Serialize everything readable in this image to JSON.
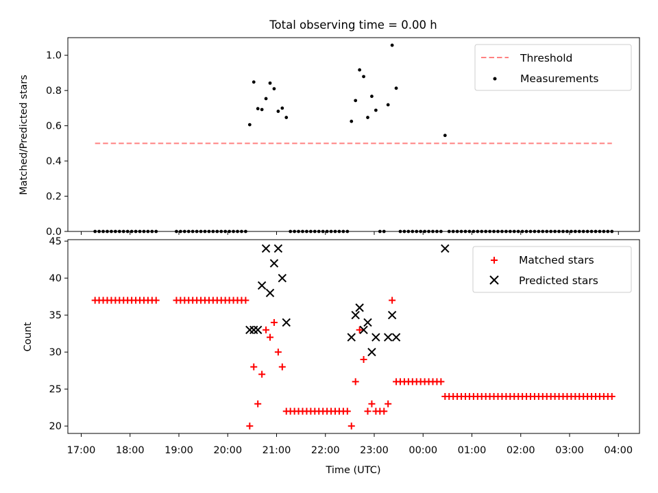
{
  "chart_data": [
    {
      "type": "scatter",
      "title": "Total observing time = 0.00 h",
      "xlabel": "",
      "ylabel": "Matched/Predicted stars",
      "ylim": [
        0,
        1.1
      ],
      "yticks": [
        "0.0",
        "0.2",
        "0.4",
        "0.6",
        "0.8",
        "1.0"
      ],
      "legend_position": "top-right",
      "threshold": {
        "name": "Threshold",
        "value": 0.5,
        "x_start": "17:17",
        "x_end": "03:52",
        "color": "#ff8080"
      },
      "measurements": {
        "name": "Measurements",
        "color": "#000000",
        "points": [
          [
            "17:17",
            0
          ],
          [
            "17:22",
            0
          ],
          [
            "17:27",
            0
          ],
          [
            "17:32",
            0
          ],
          [
            "17:37",
            0
          ],
          [
            "17:42",
            0
          ],
          [
            "17:47",
            0
          ],
          [
            "17:52",
            0
          ],
          [
            "17:57",
            0
          ],
          [
            "18:02",
            0
          ],
          [
            "18:07",
            0
          ],
          [
            "18:12",
            0
          ],
          [
            "18:17",
            0
          ],
          [
            "18:22",
            0
          ],
          [
            "18:27",
            0
          ],
          [
            "18:32",
            0
          ],
          [
            "18:57",
            0
          ],
          [
            "19:02",
            0
          ],
          [
            "19:07",
            0
          ],
          [
            "19:12",
            0
          ],
          [
            "19:17",
            0
          ],
          [
            "19:22",
            0
          ],
          [
            "19:27",
            0
          ],
          [
            "19:32",
            0
          ],
          [
            "19:37",
            0
          ],
          [
            "19:42",
            0
          ],
          [
            "19:47",
            0
          ],
          [
            "19:52",
            0
          ],
          [
            "19:57",
            0
          ],
          [
            "20:02",
            0
          ],
          [
            "20:07",
            0
          ],
          [
            "20:12",
            0
          ],
          [
            "20:17",
            0
          ],
          [
            "20:22",
            0
          ],
          [
            "20:27",
            0.606
          ],
          [
            "20:32",
            0.848
          ],
          [
            "20:37",
            0.697
          ],
          [
            "20:42",
            0.692
          ],
          [
            "20:47",
            0.754
          ],
          [
            "20:52",
            0.842
          ],
          [
            "20:57",
            0.81
          ],
          [
            "21:02",
            0.682
          ],
          [
            "21:07",
            0.7
          ],
          [
            "21:12",
            0.647
          ],
          [
            "21:17",
            0
          ],
          [
            "21:22",
            0
          ],
          [
            "21:27",
            0
          ],
          [
            "21:32",
            0
          ],
          [
            "21:37",
            0
          ],
          [
            "21:42",
            0
          ],
          [
            "21:47",
            0
          ],
          [
            "21:52",
            0
          ],
          [
            "21:57",
            0
          ],
          [
            "22:02",
            0
          ],
          [
            "22:07",
            0
          ],
          [
            "22:12",
            0
          ],
          [
            "22:17",
            0
          ],
          [
            "22:22",
            0
          ],
          [
            "22:27",
            0
          ],
          [
            "22:32",
            0.625
          ],
          [
            "22:37",
            0.743
          ],
          [
            "22:42",
            0.917
          ],
          [
            "22:47",
            0.879
          ],
          [
            "22:52",
            0.647
          ],
          [
            "22:57",
            0.767
          ],
          [
            "23:02",
            0.688
          ],
          [
            "23:07",
            0
          ],
          [
            "23:12",
            0
          ],
          [
            "23:17",
            0.719
          ],
          [
            "23:22",
            1.057
          ],
          [
            "23:27",
            0.813
          ],
          [
            "23:32",
            0
          ],
          [
            "23:37",
            0
          ],
          [
            "23:42",
            0
          ],
          [
            "23:47",
            0
          ],
          [
            "23:52",
            0
          ],
          [
            "23:57",
            0
          ],
          [
            "00:02",
            0
          ],
          [
            "00:07",
            0
          ],
          [
            "00:12",
            0
          ],
          [
            "00:17",
            0
          ],
          [
            "00:22",
            0
          ],
          [
            "00:27",
            0.545
          ],
          [
            "00:32",
            0
          ],
          [
            "00:37",
            0
          ],
          [
            "00:42",
            0
          ],
          [
            "00:47",
            0
          ],
          [
            "00:52",
            0
          ],
          [
            "00:57",
            0
          ],
          [
            "01:02",
            0
          ],
          [
            "01:07",
            0
          ],
          [
            "01:12",
            0
          ],
          [
            "01:17",
            0
          ],
          [
            "01:22",
            0
          ],
          [
            "01:27",
            0
          ],
          [
            "01:32",
            0
          ],
          [
            "01:37",
            0
          ],
          [
            "01:42",
            0
          ],
          [
            "01:47",
            0
          ],
          [
            "01:52",
            0
          ],
          [
            "01:57",
            0
          ],
          [
            "02:02",
            0
          ],
          [
            "02:07",
            0
          ],
          [
            "02:12",
            0
          ],
          [
            "02:17",
            0
          ],
          [
            "02:22",
            0
          ],
          [
            "02:27",
            0
          ],
          [
            "02:32",
            0
          ],
          [
            "02:37",
            0
          ],
          [
            "02:42",
            0
          ],
          [
            "02:47",
            0
          ],
          [
            "02:52",
            0
          ],
          [
            "02:57",
            0
          ],
          [
            "03:02",
            0
          ],
          [
            "03:07",
            0
          ],
          [
            "03:12",
            0
          ],
          [
            "03:17",
            0
          ],
          [
            "03:22",
            0
          ],
          [
            "03:27",
            0
          ],
          [
            "03:32",
            0
          ],
          [
            "03:37",
            0
          ],
          [
            "03:42",
            0
          ],
          [
            "03:47",
            0
          ],
          [
            "03:52",
            0
          ]
        ]
      }
    },
    {
      "type": "scatter",
      "title": "",
      "xlabel": "Time (UTC)",
      "ylabel": "Count",
      "ylim": [
        19,
        45.2
      ],
      "yticks": [
        "20",
        "25",
        "30",
        "35",
        "40",
        "45"
      ],
      "xticks": [
        "17:00",
        "18:00",
        "19:00",
        "20:00",
        "21:00",
        "22:00",
        "23:00",
        "00:00",
        "01:00",
        "02:00",
        "03:00",
        "04:00"
      ],
      "legend_position": "top-right",
      "series": [
        {
          "name": "Matched stars",
          "marker": "plus",
          "color": "#ff0000",
          "points": [
            [
              "17:17",
              37
            ],
            [
              "17:22",
              37
            ],
            [
              "17:27",
              37
            ],
            [
              "17:32",
              37
            ],
            [
              "17:37",
              37
            ],
            [
              "17:42",
              37
            ],
            [
              "17:47",
              37
            ],
            [
              "17:52",
              37
            ],
            [
              "17:57",
              37
            ],
            [
              "18:02",
              37
            ],
            [
              "18:07",
              37
            ],
            [
              "18:12",
              37
            ],
            [
              "18:17",
              37
            ],
            [
              "18:22",
              37
            ],
            [
              "18:27",
              37
            ],
            [
              "18:32",
              37
            ],
            [
              "18:57",
              37
            ],
            [
              "19:02",
              37
            ],
            [
              "19:07",
              37
            ],
            [
              "19:12",
              37
            ],
            [
              "19:17",
              37
            ],
            [
              "19:22",
              37
            ],
            [
              "19:27",
              37
            ],
            [
              "19:32",
              37
            ],
            [
              "19:37",
              37
            ],
            [
              "19:42",
              37
            ],
            [
              "19:47",
              37
            ],
            [
              "19:52",
              37
            ],
            [
              "19:57",
              37
            ],
            [
              "20:02",
              37
            ],
            [
              "20:07",
              37
            ],
            [
              "20:12",
              37
            ],
            [
              "20:17",
              37
            ],
            [
              "20:22",
              37
            ],
            [
              "20:27",
              20
            ],
            [
              "20:32",
              28
            ],
            [
              "20:37",
              23
            ],
            [
              "20:42",
              27
            ],
            [
              "20:47",
              33
            ],
            [
              "20:52",
              32
            ],
            [
              "20:57",
              34
            ],
            [
              "21:02",
              30
            ],
            [
              "21:07",
              28
            ],
            [
              "21:12",
              22
            ],
            [
              "21:17",
              22
            ],
            [
              "21:22",
              22
            ],
            [
              "21:27",
              22
            ],
            [
              "21:32",
              22
            ],
            [
              "21:37",
              22
            ],
            [
              "21:42",
              22
            ],
            [
              "21:47",
              22
            ],
            [
              "21:52",
              22
            ],
            [
              "21:57",
              22
            ],
            [
              "22:02",
              22
            ],
            [
              "22:07",
              22
            ],
            [
              "22:12",
              22
            ],
            [
              "22:17",
              22
            ],
            [
              "22:22",
              22
            ],
            [
              "22:27",
              22
            ],
            [
              "22:32",
              20
            ],
            [
              "22:37",
              26
            ],
            [
              "22:42",
              33
            ],
            [
              "22:47",
              29
            ],
            [
              "22:52",
              22
            ],
            [
              "22:57",
              23
            ],
            [
              "23:02",
              22
            ],
            [
              "23:07",
              22
            ],
            [
              "23:12",
              22
            ],
            [
              "23:17",
              23
            ],
            [
              "23:22",
              37
            ],
            [
              "23:27",
              26
            ],
            [
              "23:32",
              26
            ],
            [
              "23:37",
              26
            ],
            [
              "23:42",
              26
            ],
            [
              "23:47",
              26
            ],
            [
              "23:52",
              26
            ],
            [
              "23:57",
              26
            ],
            [
              "00:02",
              26
            ],
            [
              "00:07",
              26
            ],
            [
              "00:12",
              26
            ],
            [
              "00:17",
              26
            ],
            [
              "00:22",
              26
            ],
            [
              "00:27",
              24
            ],
            [
              "00:32",
              24
            ],
            [
              "00:37",
              24
            ],
            [
              "00:42",
              24
            ],
            [
              "00:47",
              24
            ],
            [
              "00:52",
              24
            ],
            [
              "00:57",
              24
            ],
            [
              "01:02",
              24
            ],
            [
              "01:07",
              24
            ],
            [
              "01:12",
              24
            ],
            [
              "01:17",
              24
            ],
            [
              "01:22",
              24
            ],
            [
              "01:27",
              24
            ],
            [
              "01:32",
              24
            ],
            [
              "01:37",
              24
            ],
            [
              "01:42",
              24
            ],
            [
              "01:47",
              24
            ],
            [
              "01:52",
              24
            ],
            [
              "01:57",
              24
            ],
            [
              "02:02",
              24
            ],
            [
              "02:07",
              24
            ],
            [
              "02:12",
              24
            ],
            [
              "02:17",
              24
            ],
            [
              "02:22",
              24
            ],
            [
              "02:27",
              24
            ],
            [
              "02:32",
              24
            ],
            [
              "02:37",
              24
            ],
            [
              "02:42",
              24
            ],
            [
              "02:47",
              24
            ],
            [
              "02:52",
              24
            ],
            [
              "02:57",
              24
            ],
            [
              "03:02",
              24
            ],
            [
              "03:07",
              24
            ],
            [
              "03:12",
              24
            ],
            [
              "03:17",
              24
            ],
            [
              "03:22",
              24
            ],
            [
              "03:27",
              24
            ],
            [
              "03:32",
              24
            ],
            [
              "03:37",
              24
            ],
            [
              "03:42",
              24
            ],
            [
              "03:47",
              24
            ],
            [
              "03:52",
              24
            ]
          ]
        },
        {
          "name": "Predicted stars",
          "marker": "x",
          "color": "#000000",
          "points": [
            [
              "20:27",
              33
            ],
            [
              "20:32",
              33
            ],
            [
              "20:37",
              33
            ],
            [
              "20:42",
              39
            ],
            [
              "20:47",
              44
            ],
            [
              "20:52",
              38
            ],
            [
              "20:57",
              42
            ],
            [
              "21:02",
              44
            ],
            [
              "21:07",
              40
            ],
            [
              "21:12",
              34
            ],
            [
              "22:32",
              32
            ],
            [
              "22:37",
              35
            ],
            [
              "22:42",
              36
            ],
            [
              "22:47",
              33
            ],
            [
              "22:52",
              34
            ],
            [
              "22:57",
              30
            ],
            [
              "23:02",
              32
            ],
            [
              "23:17",
              32
            ],
            [
              "23:22",
              35
            ],
            [
              "23:27",
              32
            ],
            [
              "00:27",
              44
            ]
          ]
        }
      ]
    }
  ]
}
